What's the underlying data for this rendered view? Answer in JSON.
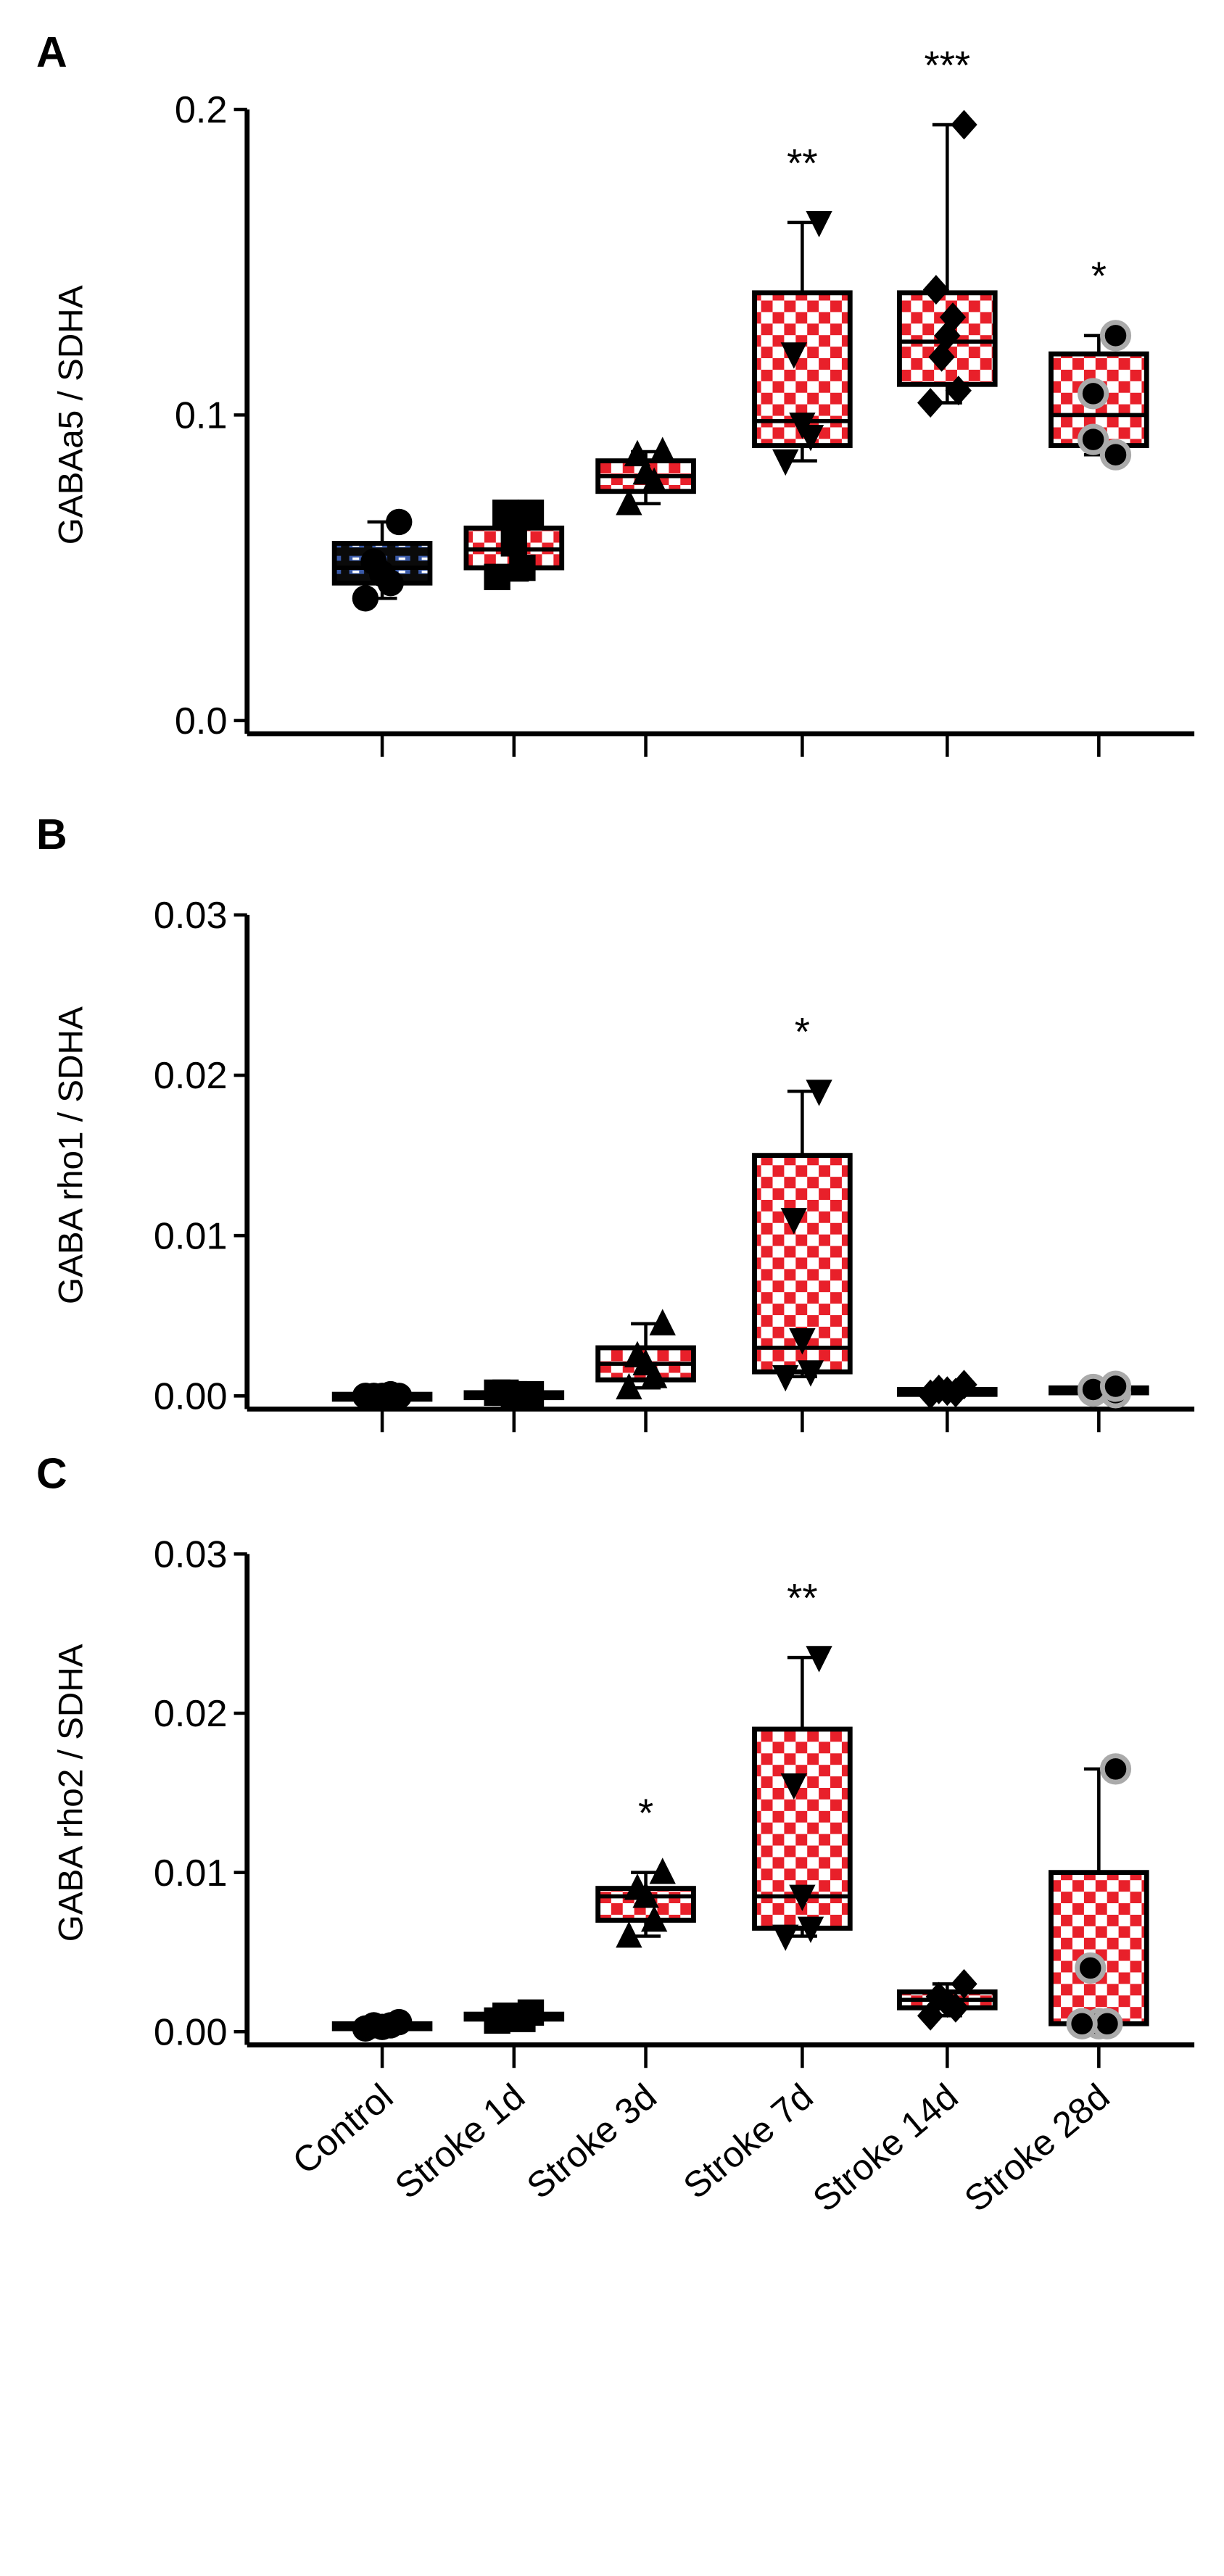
{
  "chart_data": [
    {
      "type": "box",
      "panel_label": "A",
      "ylabel": "GABAa5 / SDHA",
      "ylim": [
        0,
        0.2
      ],
      "yticks": [
        "0.0",
        "0.1",
        "0.2"
      ],
      "categories": [
        "Control",
        "Stroke 1d",
        "Stroke 3d",
        "Stroke 7d",
        "Stroke 14d",
        "Stroke 28d"
      ],
      "groups": [
        {
          "min": 0.04,
          "q1": 0.045,
          "median": 0.05,
          "q3": 0.058,
          "max": 0.065,
          "points": [
            0.065,
            0.052,
            0.048,
            0.045,
            0.04
          ],
          "sig": ""
        },
        {
          "min": 0.046,
          "q1": 0.05,
          "median": 0.056,
          "q3": 0.063,
          "max": 0.068,
          "points": [
            0.068,
            0.068,
            0.058,
            0.05,
            0.047
          ],
          "sig": ""
        },
        {
          "min": 0.071,
          "q1": 0.075,
          "median": 0.08,
          "q3": 0.085,
          "max": 0.088,
          "points": [
            0.088,
            0.087,
            0.081,
            0.078,
            0.071
          ],
          "sig": ""
        },
        {
          "min": 0.085,
          "q1": 0.09,
          "median": 0.098,
          "q3": 0.14,
          "max": 0.163,
          "points": [
            0.163,
            0.12,
            0.097,
            0.093,
            0.085
          ],
          "sig": "**"
        },
        {
          "min": 0.104,
          "q1": 0.11,
          "median": 0.124,
          "q3": 0.14,
          "max": 0.195,
          "points": [
            0.195,
            0.141,
            0.132,
            0.126,
            0.119,
            0.108,
            0.104
          ],
          "sig": "***"
        },
        {
          "min": 0.087,
          "q1": 0.09,
          "median": 0.1,
          "q3": 0.12,
          "max": 0.126,
          "points": [
            0.126,
            0.107,
            0.092,
            0.087
          ],
          "sig": "*"
        }
      ]
    },
    {
      "type": "box",
      "panel_label": "B",
      "ylabel": "GABA rho1 / SDHA",
      "ylim": [
        0,
        0.03
      ],
      "yticks": [
        "0.00",
        "0.01",
        "0.02",
        "0.03"
      ],
      "categories": [
        "Control",
        "Stroke 1d",
        "Stroke 3d",
        "Stroke 7d",
        "Stroke 14d",
        "Stroke 28d"
      ],
      "groups": [
        {
          "min": 0.0,
          "q1": 0.0,
          "median": 0.0,
          "q3": 0.0001,
          "max": 0.0001,
          "points": [
            0.0,
            0.0,
            0.0,
            0.0001,
            0.0
          ],
          "sig": ""
        },
        {
          "min": 0.0,
          "q1": 0.0001,
          "median": 0.0001,
          "q3": 0.0002,
          "max": 0.0002,
          "points": [
            0.0001,
            0.0002,
            0.0001,
            0.0,
            0.0002
          ],
          "sig": ""
        },
        {
          "min": 0.0005,
          "q1": 0.001,
          "median": 0.002,
          "q3": 0.003,
          "max": 0.0045,
          "points": [
            0.0045,
            0.0025,
            0.002,
            0.0012,
            0.0005
          ],
          "sig": ""
        },
        {
          "min": 0.0012,
          "q1": 0.0015,
          "median": 0.003,
          "q3": 0.015,
          "max": 0.019,
          "points": [
            0.019,
            0.011,
            0.0035,
            0.0015,
            0.0012
          ],
          "sig": "*"
        },
        {
          "min": 0.0001,
          "q1": 0.0002,
          "median": 0.0003,
          "q3": 0.0004,
          "max": 0.0007,
          "points": [
            0.0007,
            0.0004,
            0.0003,
            0.0002,
            0.0001
          ],
          "sig": ""
        },
        {
          "min": 0.0002,
          "q1": 0.0002,
          "median": 0.0003,
          "q3": 0.0005,
          "max": 0.0006,
          "points": [
            0.0002,
            0.0003,
            0.0004,
            0.0006
          ],
          "sig": ""
        }
      ]
    },
    {
      "type": "box",
      "panel_label": "C",
      "ylabel": "GABA rho2 / SDHA",
      "ylim": [
        0,
        0.03
      ],
      "yticks": [
        "0.00",
        "0.01",
        "0.02",
        "0.03"
      ],
      "categories": [
        "Control",
        "Stroke 1d",
        "Stroke 3d",
        "Stroke 7d",
        "Stroke 14d",
        "Stroke 28d"
      ],
      "groups": [
        {
          "min": 0.0002,
          "q1": 0.0003,
          "median": 0.0004,
          "q3": 0.0005,
          "max": 0.0006,
          "points": [
            0.0006,
            0.0004,
            0.0003,
            0.0004,
            0.0002
          ],
          "sig": ""
        },
        {
          "min": 0.0007,
          "q1": 0.0008,
          "median": 0.0009,
          "q3": 0.0011,
          "max": 0.0012,
          "points": [
            0.0012,
            0.001,
            0.0009,
            0.0008,
            0.0007
          ],
          "sig": ""
        },
        {
          "min": 0.006,
          "q1": 0.007,
          "median": 0.0085,
          "q3": 0.009,
          "max": 0.01,
          "points": [
            0.01,
            0.009,
            0.0085,
            0.007,
            0.006
          ],
          "sig": "*"
        },
        {
          "min": 0.006,
          "q1": 0.0065,
          "median": 0.0085,
          "q3": 0.019,
          "max": 0.0235,
          "points": [
            0.0235,
            0.0155,
            0.0085,
            0.0065,
            0.006
          ],
          "sig": "**"
        },
        {
          "min": 0.001,
          "q1": 0.0015,
          "median": 0.002,
          "q3": 0.0025,
          "max": 0.003,
          "points": [
            0.003,
            0.0022,
            0.0018,
            0.0015,
            0.001
          ],
          "sig": ""
        },
        {
          "min": 0.0005,
          "q1": 0.0005,
          "median": 0.0005,
          "q3": 0.01,
          "max": 0.0165,
          "points": [
            0.0165,
            0.004,
            0.0005,
            0.0005,
            0.0005
          ],
          "sig": ""
        }
      ]
    }
  ],
  "colors": {
    "checker_red": "#e8202a",
    "control_blue": "#3a5aa8",
    "outline": "#000000",
    "ring_gray": "#aaaaaa"
  },
  "markers": [
    "circle",
    "square",
    "triangle-up",
    "triangle-down",
    "diamond",
    "circle-ringed"
  ]
}
